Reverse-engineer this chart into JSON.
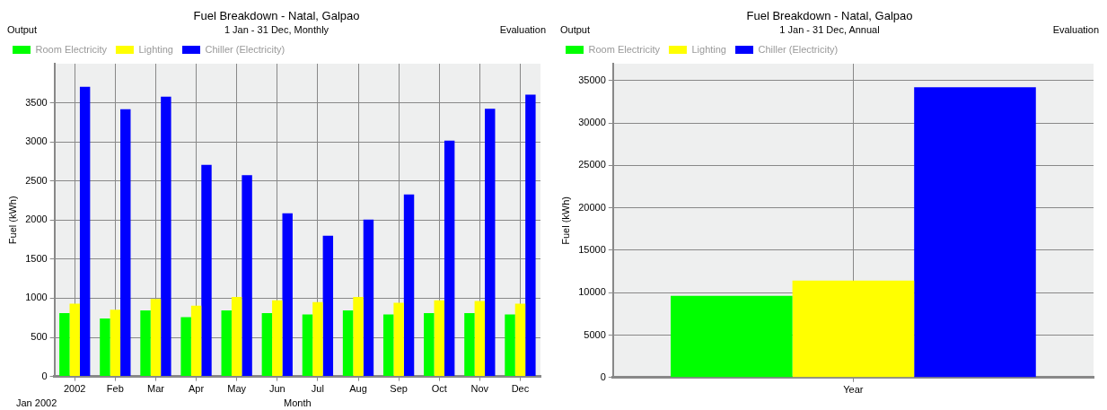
{
  "chart_data": [
    {
      "type": "bar",
      "title": "Fuel Breakdown - Natal, Galpao",
      "subtitle": "1 Jan - 31 Dec, Monthly",
      "xlabel": "Month",
      "ylabel": "Fuel (kWh)",
      "annotations": [
        "Output",
        "Evaluation",
        "Jan 2002"
      ],
      "categories": [
        "2002",
        "Feb",
        "Mar",
        "Apr",
        "May",
        "Jun",
        "Jul",
        "Aug",
        "Sep",
        "Oct",
        "Nov",
        "Dec"
      ],
      "series": [
        {
          "name": "Room Electricity",
          "color": "#00ff00",
          "values": [
            810,
            741,
            844,
            758,
            844,
            810,
            793,
            844,
            793,
            810,
            810,
            793
          ]
        },
        {
          "name": "Lighting",
          "color": "#ffff00",
          "values": [
            930,
            853,
            990,
            904,
            1016,
            973,
            951,
            1016,
            943,
            973,
            964,
            930
          ]
        },
        {
          "name": "Chiller (Electricity)",
          "color": "#0000ff",
          "values": [
            3705,
            3419,
            3577,
            2705,
            2573,
            2087,
            1800,
            2005,
            2327,
            3017,
            3423,
            3603
          ]
        }
      ],
      "ylim": [
        0,
        4000
      ],
      "yticks": [
        0,
        500,
        1000,
        1500,
        2000,
        2500,
        3000,
        3500
      ],
      "grid": true,
      "legend": "top left"
    },
    {
      "type": "bar",
      "title": "Fuel Breakdown - Natal, Galpao",
      "subtitle": "1 Jan - 31 Dec, Annual",
      "ylabel": "Fuel (kWh)",
      "annotations": [
        "Output",
        "Evaluation"
      ],
      "categories": [
        "Year"
      ],
      "series": [
        {
          "name": "Room Electricity",
          "color": "#00ff00",
          "values": [
            9640
          ]
        },
        {
          "name": "Lighting",
          "color": "#ffff00",
          "values": [
            11420
          ]
        },
        {
          "name": "Chiller (Electricity)",
          "color": "#0000ff",
          "values": [
            34215
          ]
        }
      ],
      "ylim": [
        0,
        37000
      ],
      "yticks": [
        0,
        5000,
        10000,
        15000,
        20000,
        25000,
        30000,
        35000
      ],
      "grid": true,
      "legend": "top left"
    }
  ]
}
